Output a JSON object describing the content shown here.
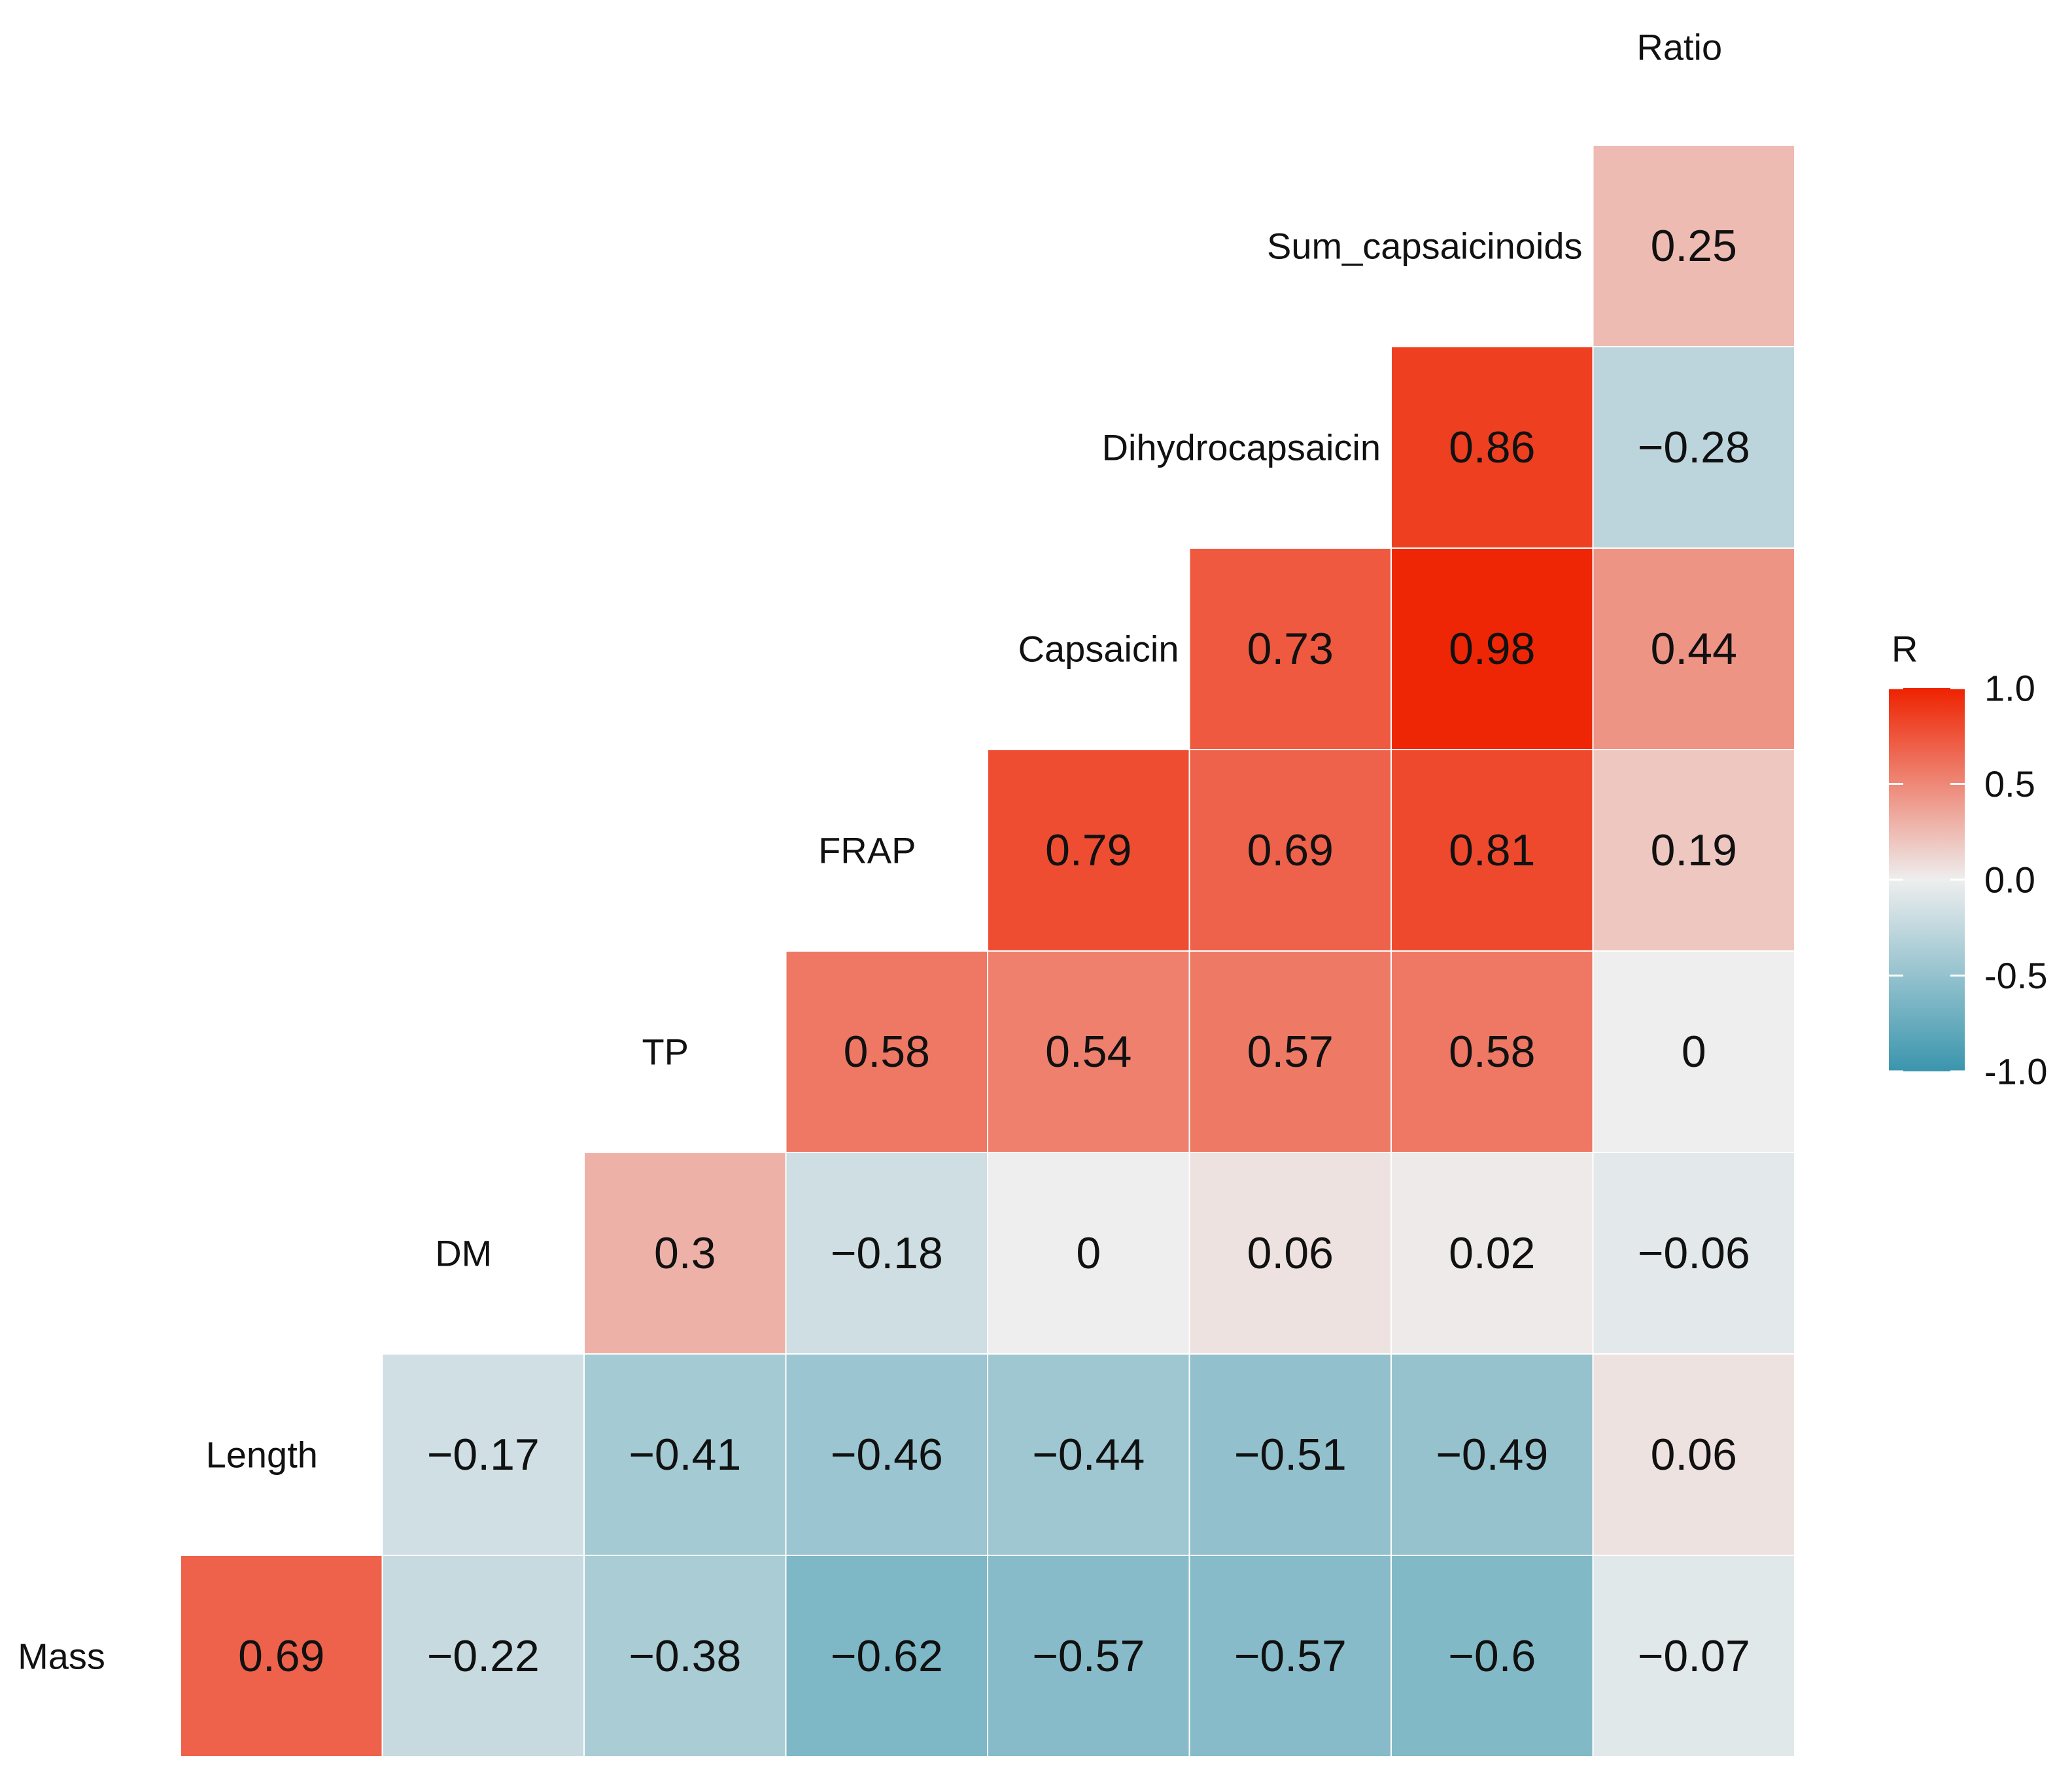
{
  "chart_data": {
    "type": "heatmap",
    "subtype": "lower-triangular correlation matrix",
    "variables": [
      "Mass",
      "Length",
      "DM",
      "TP",
      "FRAP",
      "Capsaicin",
      "Dihydrocapsaicin",
      "Sum_capsaicinoids",
      "Ratio"
    ],
    "values": [
      {
        "row": "Mass",
        "col": "Length",
        "r": 0.69,
        "label": "0.69"
      },
      {
        "row": "Mass",
        "col": "DM",
        "r": -0.22,
        "label": "−0.22"
      },
      {
        "row": "Mass",
        "col": "TP",
        "r": -0.38,
        "label": "−0.38"
      },
      {
        "row": "Mass",
        "col": "FRAP",
        "r": -0.62,
        "label": "−0.62"
      },
      {
        "row": "Mass",
        "col": "Capsaicin",
        "r": -0.57,
        "label": "−0.57"
      },
      {
        "row": "Mass",
        "col": "Dihydrocapsaicin",
        "r": -0.57,
        "label": "−0.57"
      },
      {
        "row": "Mass",
        "col": "Sum_capsaicinoids",
        "r": -0.6,
        "label": "−0.6"
      },
      {
        "row": "Mass",
        "col": "Ratio",
        "r": -0.07,
        "label": "−0.07"
      },
      {
        "row": "Length",
        "col": "DM",
        "r": -0.17,
        "label": "−0.17"
      },
      {
        "row": "Length",
        "col": "TP",
        "r": -0.41,
        "label": "−0.41"
      },
      {
        "row": "Length",
        "col": "FRAP",
        "r": -0.46,
        "label": "−0.46"
      },
      {
        "row": "Length",
        "col": "Capsaicin",
        "r": -0.44,
        "label": "−0.44"
      },
      {
        "row": "Length",
        "col": "Dihydrocapsaicin",
        "r": -0.51,
        "label": "−0.51"
      },
      {
        "row": "Length",
        "col": "Sum_capsaicinoids",
        "r": -0.49,
        "label": "−0.49"
      },
      {
        "row": "Length",
        "col": "Ratio",
        "r": 0.06,
        "label": "0.06"
      },
      {
        "row": "DM",
        "col": "TP",
        "r": 0.3,
        "label": "0.3"
      },
      {
        "row": "DM",
        "col": "FRAP",
        "r": -0.18,
        "label": "−0.18"
      },
      {
        "row": "DM",
        "col": "Capsaicin",
        "r": 0,
        "label": "0"
      },
      {
        "row": "DM",
        "col": "Dihydrocapsaicin",
        "r": 0.06,
        "label": "0.06"
      },
      {
        "row": "DM",
        "col": "Sum_capsaicinoids",
        "r": 0.02,
        "label": "0.02"
      },
      {
        "row": "DM",
        "col": "Ratio",
        "r": -0.06,
        "label": "−0.06"
      },
      {
        "row": "TP",
        "col": "FRAP",
        "r": 0.58,
        "label": "0.58"
      },
      {
        "row": "TP",
        "col": "Capsaicin",
        "r": 0.54,
        "label": "0.54"
      },
      {
        "row": "TP",
        "col": "Dihydrocapsaicin",
        "r": 0.57,
        "label": "0.57"
      },
      {
        "row": "TP",
        "col": "Sum_capsaicinoids",
        "r": 0.58,
        "label": "0.58"
      },
      {
        "row": "TP",
        "col": "Ratio",
        "r": 0,
        "label": "0"
      },
      {
        "row": "FRAP",
        "col": "Capsaicin",
        "r": 0.79,
        "label": "0.79"
      },
      {
        "row": "FRAP",
        "col": "Dihydrocapsaicin",
        "r": 0.69,
        "label": "0.69"
      },
      {
        "row": "FRAP",
        "col": "Sum_capsaicinoids",
        "r": 0.81,
        "label": "0.81"
      },
      {
        "row": "FRAP",
        "col": "Ratio",
        "r": 0.19,
        "label": "0.19"
      },
      {
        "row": "Capsaicin",
        "col": "Dihydrocapsaicin",
        "r": 0.73,
        "label": "0.73"
      },
      {
        "row": "Capsaicin",
        "col": "Sum_capsaicinoids",
        "r": 0.98,
        "label": "0.98"
      },
      {
        "row": "Capsaicin",
        "col": "Ratio",
        "r": 0.44,
        "label": "0.44"
      },
      {
        "row": "Dihydrocapsaicin",
        "col": "Sum_capsaicinoids",
        "r": 0.86,
        "label": "0.86"
      },
      {
        "row": "Dihydrocapsaicin",
        "col": "Ratio",
        "r": -0.28,
        "label": "−0.28"
      },
      {
        "row": "Sum_capsaicinoids",
        "col": "Ratio",
        "r": 0.25,
        "label": "0.25"
      }
    ],
    "legend": {
      "title": "R",
      "range": [
        -1,
        1
      ],
      "ticks": [
        "1.0",
        "0.5",
        "0.0",
        "-0.5",
        "-1.0"
      ],
      "position": "right"
    },
    "colors": {
      "low": "#3a95ad",
      "mid": "#eeeeee",
      "high": "#ee2200"
    }
  }
}
